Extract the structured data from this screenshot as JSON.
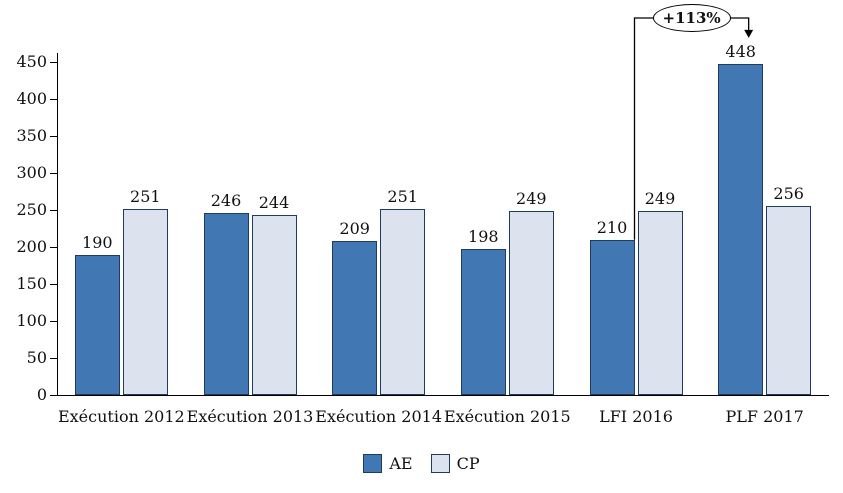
{
  "chart_data": {
    "type": "bar",
    "categories": [
      "Exécution 2012",
      "Exécution 2013",
      "Exécution 2014",
      "Exécution 2015",
      "LFI 2016",
      "PLF 2017"
    ],
    "series": [
      {
        "name": "AE",
        "values": [
          190,
          246,
          209,
          198,
          210,
          448
        ],
        "fill": "#4178B3"
      },
      {
        "name": "CP",
        "values": [
          251,
          244,
          251,
          249,
          249,
          256
        ],
        "fill": "#DCE3EF"
      }
    ],
    "bar_border": "#1F3C5F",
    "ylim": [
      0,
      450
    ],
    "yticks": [
      0,
      50,
      100,
      150,
      200,
      250,
      300,
      350,
      400,
      450
    ],
    "grid": false,
    "legend_position": "bottom",
    "annotation": {
      "label": "+113%",
      "series": "AE",
      "from_category": "LFI 2016",
      "to_category": "PLF 2017"
    }
  }
}
